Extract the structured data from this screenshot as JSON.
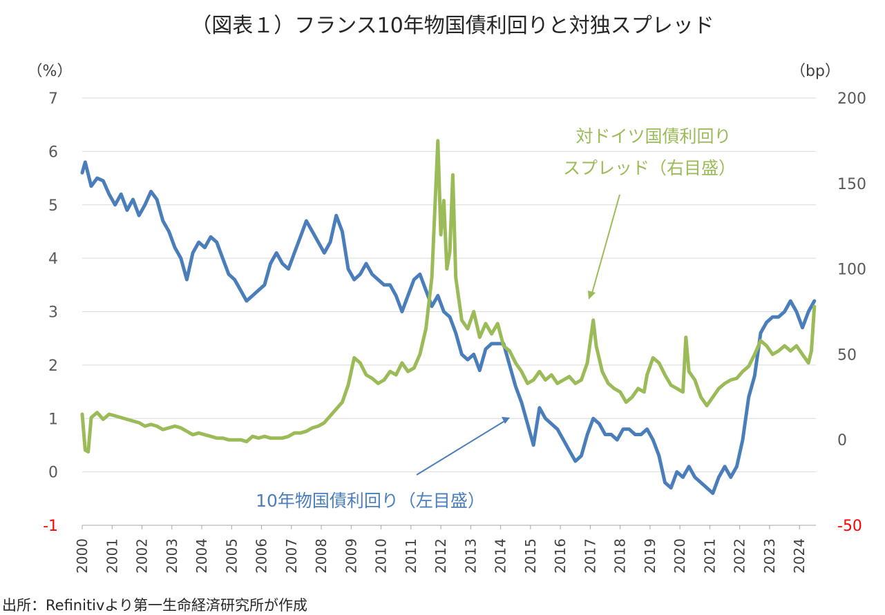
{
  "chart_data": {
    "type": "line",
    "title": "（図表１）フランス10年物国債利回りと対独スプレッド",
    "left_unit": "（%）",
    "right_unit": "（bp）",
    "x_range": [
      2000.0,
      2024.55
    ],
    "y_left_range": [
      -1,
      7
    ],
    "y_right_range": [
      -50,
      200
    ],
    "y_left_ticks": [
      "7",
      "6",
      "5",
      "4",
      "3",
      "2",
      "1",
      "0",
      "-1"
    ],
    "y_right_ticks": [
      "200",
      "150",
      "100",
      "50",
      "0",
      "-50"
    ],
    "x_ticks": [
      "2000",
      "2001",
      "2002",
      "2003",
      "2004",
      "2005",
      "2006",
      "2007",
      "2008",
      "2009",
      "2010",
      "2011",
      "2012",
      "2013",
      "2014",
      "2015",
      "2016",
      "2017",
      "2018",
      "2019",
      "2020",
      "2021",
      "2022",
      "2023",
      "2024"
    ],
    "grid": true,
    "series": [
      {
        "name": "10年物国債利回り（左目盛）",
        "axis": "left",
        "color": "#4a7ebb",
        "points": [
          [
            2000.0,
            5.6
          ],
          [
            2000.1,
            5.8
          ],
          [
            2000.3,
            5.35
          ],
          [
            2000.5,
            5.5
          ],
          [
            2000.7,
            5.45
          ],
          [
            2000.9,
            5.2
          ],
          [
            2001.1,
            5.0
          ],
          [
            2001.3,
            5.2
          ],
          [
            2001.5,
            4.9
          ],
          [
            2001.7,
            5.1
          ],
          [
            2001.9,
            4.8
          ],
          [
            2002.1,
            5.0
          ],
          [
            2002.3,
            5.25
          ],
          [
            2002.5,
            5.1
          ],
          [
            2002.7,
            4.7
          ],
          [
            2002.9,
            4.5
          ],
          [
            2003.1,
            4.2
          ],
          [
            2003.3,
            4.0
          ],
          [
            2003.5,
            3.6
          ],
          [
            2003.7,
            4.1
          ],
          [
            2003.9,
            4.3
          ],
          [
            2004.1,
            4.2
          ],
          [
            2004.3,
            4.4
          ],
          [
            2004.5,
            4.3
          ],
          [
            2004.7,
            4.0
          ],
          [
            2004.9,
            3.7
          ],
          [
            2005.1,
            3.6
          ],
          [
            2005.3,
            3.4
          ],
          [
            2005.5,
            3.2
          ],
          [
            2005.7,
            3.3
          ],
          [
            2005.9,
            3.4
          ],
          [
            2006.1,
            3.5
          ],
          [
            2006.3,
            3.9
          ],
          [
            2006.5,
            4.1
          ],
          [
            2006.7,
            3.9
          ],
          [
            2006.9,
            3.8
          ],
          [
            2007.1,
            4.1
          ],
          [
            2007.3,
            4.4
          ],
          [
            2007.5,
            4.7
          ],
          [
            2007.7,
            4.5
          ],
          [
            2007.9,
            4.3
          ],
          [
            2008.1,
            4.1
          ],
          [
            2008.3,
            4.3
          ],
          [
            2008.5,
            4.8
          ],
          [
            2008.7,
            4.5
          ],
          [
            2008.9,
            3.8
          ],
          [
            2009.1,
            3.6
          ],
          [
            2009.3,
            3.7
          ],
          [
            2009.5,
            3.9
          ],
          [
            2009.7,
            3.7
          ],
          [
            2009.9,
            3.6
          ],
          [
            2010.1,
            3.5
          ],
          [
            2010.3,
            3.5
          ],
          [
            2010.5,
            3.3
          ],
          [
            2010.7,
            3.0
          ],
          [
            2010.9,
            3.3
          ],
          [
            2011.1,
            3.6
          ],
          [
            2011.3,
            3.7
          ],
          [
            2011.5,
            3.4
          ],
          [
            2011.7,
            3.1
          ],
          [
            2011.9,
            3.3
          ],
          [
            2012.1,
            3.0
          ],
          [
            2012.3,
            2.9
          ],
          [
            2012.5,
            2.6
          ],
          [
            2012.7,
            2.2
          ],
          [
            2012.9,
            2.1
          ],
          [
            2013.1,
            2.2
          ],
          [
            2013.3,
            1.9
          ],
          [
            2013.5,
            2.3
          ],
          [
            2013.7,
            2.4
          ],
          [
            2013.9,
            2.4
          ],
          [
            2014.1,
            2.4
          ],
          [
            2014.3,
            2.0
          ],
          [
            2014.5,
            1.6
          ],
          [
            2014.7,
            1.3
          ],
          [
            2014.9,
            0.9
          ],
          [
            2015.1,
            0.5
          ],
          [
            2015.3,
            1.2
          ],
          [
            2015.5,
            1.0
          ],
          [
            2015.7,
            0.9
          ],
          [
            2015.9,
            0.8
          ],
          [
            2016.1,
            0.6
          ],
          [
            2016.3,
            0.4
          ],
          [
            2016.5,
            0.2
          ],
          [
            2016.7,
            0.3
          ],
          [
            2016.9,
            0.7
          ],
          [
            2017.1,
            1.0
          ],
          [
            2017.3,
            0.9
          ],
          [
            2017.5,
            0.7
          ],
          [
            2017.7,
            0.7
          ],
          [
            2017.9,
            0.6
          ],
          [
            2018.1,
            0.8
          ],
          [
            2018.3,
            0.8
          ],
          [
            2018.5,
            0.7
          ],
          [
            2018.7,
            0.7
          ],
          [
            2018.9,
            0.8
          ],
          [
            2019.1,
            0.6
          ],
          [
            2019.3,
            0.3
          ],
          [
            2019.5,
            -0.2
          ],
          [
            2019.7,
            -0.3
          ],
          [
            2019.9,
            0.0
          ],
          [
            2020.1,
            -0.1
          ],
          [
            2020.3,
            0.1
          ],
          [
            2020.5,
            -0.1
          ],
          [
            2020.7,
            -0.2
          ],
          [
            2020.9,
            -0.3
          ],
          [
            2021.1,
            -0.4
          ],
          [
            2021.3,
            -0.1
          ],
          [
            2021.5,
            0.1
          ],
          [
            2021.7,
            -0.1
          ],
          [
            2021.9,
            0.1
          ],
          [
            2022.1,
            0.6
          ],
          [
            2022.3,
            1.4
          ],
          [
            2022.5,
            1.8
          ],
          [
            2022.7,
            2.6
          ],
          [
            2022.9,
            2.8
          ],
          [
            2023.1,
            2.9
          ],
          [
            2023.3,
            2.9
          ],
          [
            2023.5,
            3.0
          ],
          [
            2023.7,
            3.2
          ],
          [
            2023.9,
            3.0
          ],
          [
            2024.1,
            2.7
          ],
          [
            2024.3,
            3.0
          ],
          [
            2024.5,
            3.2
          ]
        ]
      },
      {
        "name": "対ドイツ国債利回りスプレッド（右目盛）",
        "axis": "right",
        "color": "#9bbb59",
        "points": [
          [
            2000.0,
            15
          ],
          [
            2000.1,
            -6
          ],
          [
            2000.2,
            -7
          ],
          [
            2000.3,
            13
          ],
          [
            2000.5,
            16
          ],
          [
            2000.7,
            12
          ],
          [
            2000.9,
            15
          ],
          [
            2001.1,
            14
          ],
          [
            2001.3,
            13
          ],
          [
            2001.5,
            12
          ],
          [
            2001.7,
            11
          ],
          [
            2001.9,
            10
          ],
          [
            2002.1,
            8
          ],
          [
            2002.3,
            9
          ],
          [
            2002.5,
            8
          ],
          [
            2002.7,
            6
          ],
          [
            2002.9,
            7
          ],
          [
            2003.1,
            8
          ],
          [
            2003.3,
            7
          ],
          [
            2003.5,
            5
          ],
          [
            2003.7,
            3
          ],
          [
            2003.9,
            4
          ],
          [
            2004.1,
            3
          ],
          [
            2004.3,
            2
          ],
          [
            2004.5,
            1
          ],
          [
            2004.7,
            1
          ],
          [
            2004.9,
            0
          ],
          [
            2005.1,
            0
          ],
          [
            2005.3,
            0
          ],
          [
            2005.5,
            -1
          ],
          [
            2005.7,
            2
          ],
          [
            2005.9,
            1
          ],
          [
            2006.1,
            2
          ],
          [
            2006.3,
            1
          ],
          [
            2006.5,
            1
          ],
          [
            2006.7,
            1
          ],
          [
            2006.9,
            2
          ],
          [
            2007.1,
            4
          ],
          [
            2007.3,
            4
          ],
          [
            2007.5,
            5
          ],
          [
            2007.7,
            7
          ],
          [
            2007.9,
            8
          ],
          [
            2008.1,
            10
          ],
          [
            2008.3,
            14
          ],
          [
            2008.5,
            18
          ],
          [
            2008.7,
            22
          ],
          [
            2008.9,
            32
          ],
          [
            2009.1,
            48
          ],
          [
            2009.3,
            45
          ],
          [
            2009.5,
            38
          ],
          [
            2009.7,
            36
          ],
          [
            2009.9,
            33
          ],
          [
            2010.1,
            35
          ],
          [
            2010.3,
            40
          ],
          [
            2010.5,
            38
          ],
          [
            2010.7,
            45
          ],
          [
            2010.9,
            40
          ],
          [
            2011.1,
            42
          ],
          [
            2011.3,
            50
          ],
          [
            2011.5,
            65
          ],
          [
            2011.7,
            95
          ],
          [
            2011.9,
            175
          ],
          [
            2012.0,
            120
          ],
          [
            2012.1,
            140
          ],
          [
            2012.2,
            100
          ],
          [
            2012.3,
            110
          ],
          [
            2012.4,
            155
          ],
          [
            2012.5,
            95
          ],
          [
            2012.7,
            70
          ],
          [
            2012.9,
            65
          ],
          [
            2013.1,
            75
          ],
          [
            2013.3,
            60
          ],
          [
            2013.5,
            68
          ],
          [
            2013.7,
            62
          ],
          [
            2013.9,
            68
          ],
          [
            2014.1,
            55
          ],
          [
            2014.3,
            52
          ],
          [
            2014.5,
            45
          ],
          [
            2014.7,
            40
          ],
          [
            2014.9,
            33
          ],
          [
            2015.1,
            35
          ],
          [
            2015.3,
            40
          ],
          [
            2015.5,
            35
          ],
          [
            2015.7,
            38
          ],
          [
            2015.9,
            33
          ],
          [
            2016.1,
            35
          ],
          [
            2016.3,
            37
          ],
          [
            2016.5,
            33
          ],
          [
            2016.7,
            35
          ],
          [
            2016.9,
            45
          ],
          [
            2017.1,
            70
          ],
          [
            2017.2,
            55
          ],
          [
            2017.4,
            40
          ],
          [
            2017.6,
            33
          ],
          [
            2017.8,
            30
          ],
          [
            2018.0,
            28
          ],
          [
            2018.2,
            22
          ],
          [
            2018.4,
            25
          ],
          [
            2018.6,
            30
          ],
          [
            2018.8,
            28
          ],
          [
            2018.9,
            38
          ],
          [
            2019.1,
            48
          ],
          [
            2019.3,
            45
          ],
          [
            2019.5,
            38
          ],
          [
            2019.7,
            32
          ],
          [
            2019.9,
            30
          ],
          [
            2020.1,
            28
          ],
          [
            2020.2,
            60
          ],
          [
            2020.3,
            40
          ],
          [
            2020.5,
            35
          ],
          [
            2020.7,
            25
          ],
          [
            2020.9,
            20
          ],
          [
            2021.1,
            25
          ],
          [
            2021.3,
            30
          ],
          [
            2021.5,
            33
          ],
          [
            2021.7,
            35
          ],
          [
            2021.9,
            36
          ],
          [
            2022.1,
            40
          ],
          [
            2022.3,
            43
          ],
          [
            2022.5,
            50
          ],
          [
            2022.7,
            58
          ],
          [
            2022.9,
            55
          ],
          [
            2023.1,
            50
          ],
          [
            2023.3,
            52
          ],
          [
            2023.5,
            55
          ],
          [
            2023.7,
            52
          ],
          [
            2023.9,
            55
          ],
          [
            2024.1,
            50
          ],
          [
            2024.3,
            45
          ],
          [
            2024.4,
            52
          ],
          [
            2024.5,
            78
          ]
        ]
      }
    ],
    "annotations": {
      "spread_line1": "対ドイツ国債利回り",
      "spread_line2": "スプレッド（右目盛）",
      "yield_label": "10年物国債利回り（左目盛）"
    },
    "source": "出所：Refinitivより第一生命経済研究所が作成"
  }
}
